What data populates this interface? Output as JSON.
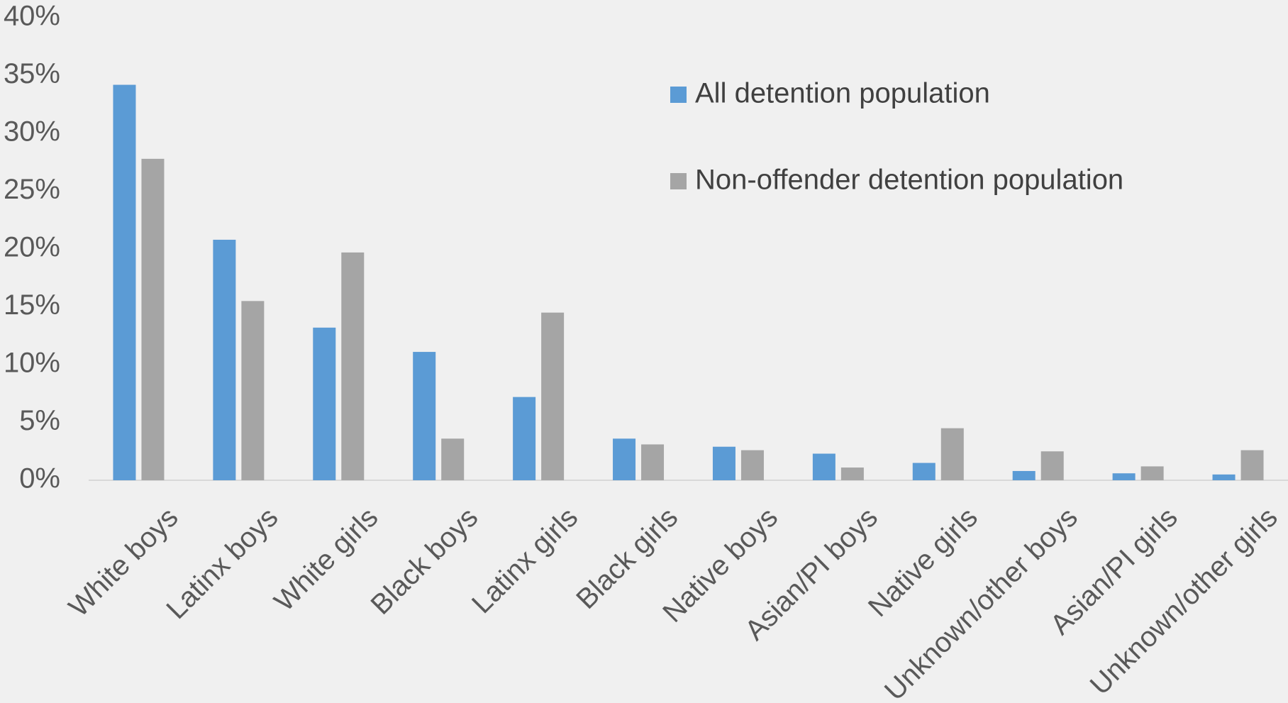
{
  "chart_data": {
    "type": "bar",
    "categories": [
      "White boys",
      "Latinx boys",
      "White girls",
      "Black boys",
      "Latinx girls",
      "Black girls",
      "Native boys",
      "Asian/PI boys",
      "Native girls",
      "Unknown/other boys",
      "Asian/PI girls",
      "Unknown/other girls"
    ],
    "series": [
      {
        "name": "All detention population",
        "color": "#5b9bd5",
        "values": [
          34.2,
          20.8,
          13.2,
          11.1,
          7.2,
          3.6,
          2.9,
          2.3,
          1.5,
          0.8,
          0.6,
          0.5
        ]
      },
      {
        "name": "Non-offender detention population",
        "color": "#a5a5a5",
        "values": [
          27.8,
          15.5,
          19.7,
          3.6,
          14.5,
          3.1,
          2.6,
          1.1,
          4.5,
          2.5,
          1.2,
          2.6
        ]
      }
    ],
    "ylim": [
      0,
      40
    ],
    "yticks": [
      0,
      5,
      10,
      15,
      20,
      25,
      30,
      35,
      40
    ],
    "ytick_labels": [
      "0%",
      "5%",
      "10%",
      "15%",
      "20%",
      "25%",
      "30%",
      "35%",
      "40%"
    ],
    "grid": false,
    "legend_position": "top-right",
    "title": "",
    "xlabel": "",
    "ylabel": ""
  }
}
